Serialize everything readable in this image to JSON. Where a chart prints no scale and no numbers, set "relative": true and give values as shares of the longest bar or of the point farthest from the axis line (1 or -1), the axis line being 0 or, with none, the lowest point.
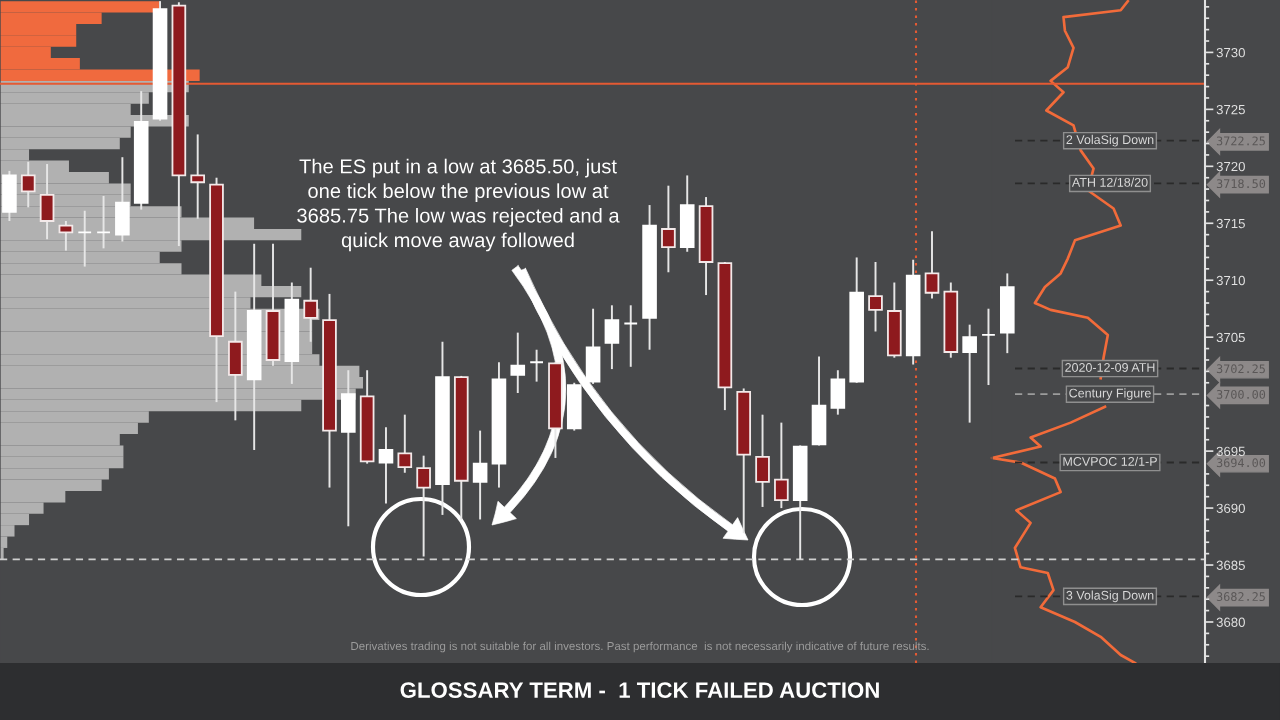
{
  "chart_data": [
    {
      "type": "candlestick",
      "title": "GLOSSARY TERM -  1 TICK FAILED AUCTION",
      "annotations": [
        "The ES put in a low at 3685.50, just\none tick below the previous low at\n3685.75 The low was rejected and a\nquick move away followed",
        "Derivatives trading is not suitable for all investors. Past performance  is not necessarily indicative of future results."
      ],
      "categories": [
        null,
        null,
        null,
        null,
        null,
        null,
        null,
        null,
        null,
        null,
        null,
        null,
        null,
        null,
        null,
        null,
        null,
        null,
        null,
        null,
        null,
        null,
        null,
        null,
        null,
        null,
        null,
        null,
        null,
        null,
        null,
        null,
        null,
        null,
        null,
        null,
        null,
        null,
        null,
        null,
        null,
        null,
        null,
        null,
        null,
        null,
        null,
        null,
        null,
        null,
        null,
        null,
        null,
        null,
        null,
        null,
        null,
        null,
        null,
        null,
        null,
        null,
        null,
        null
      ],
      "ohlc": [
        [
          3716.0,
          3719.6,
          3715.2,
          3719.2
        ],
        [
          3719.2,
          3720.4,
          3716.4,
          3717.8
        ],
        [
          3717.5,
          3720.2,
          3713.6,
          3715.2
        ],
        [
          3714.8,
          3715.2,
          3712.6,
          3714.2
        ],
        [
          3714.2,
          3716.1,
          3711.2,
          3714.2
        ],
        [
          3714.2,
          3717.4,
          3712.8,
          3714.2
        ],
        [
          3714.0,
          3720.8,
          3713.4,
          3716.8
        ],
        [
          3716.8,
          3726.6,
          3716.2,
          3723.9
        ],
        [
          3724.2,
          3734.5,
          3724.0,
          3733.8
        ],
        [
          3734.1,
          3734.4,
          3713.0,
          3719.2
        ],
        [
          3719.2,
          3722.8,
          3715.4,
          3718.6
        ],
        [
          3718.4,
          3719.0,
          3699.3,
          3705.1
        ],
        [
          3704.6,
          3709.0,
          3697.7,
          3701.7
        ],
        [
          3701.3,
          3713.2,
          3695.1,
          3707.3
        ],
        [
          3707.3,
          3713.2,
          3702.5,
          3703.0
        ],
        [
          3702.9,
          3709.8,
          3700.9,
          3708.3
        ],
        [
          3708.2,
          3711.1,
          3704.6,
          3706.7
        ],
        [
          3706.5,
          3708.8,
          3691.8,
          3696.8
        ],
        [
          3696.7,
          3702.1,
          3688.4,
          3700.0
        ],
        [
          3699.8,
          3702.1,
          3693.9,
          3694.1
        ],
        [
          3694.0,
          3697.1,
          3690.4,
          3695.1
        ],
        [
          3694.8,
          3698.2,
          3693.1,
          3693.6
        ],
        [
          3693.5,
          3694.6,
          3685.75,
          3691.8
        ],
        [
          3692.1,
          3704.6,
          3689.4,
          3701.5
        ],
        [
          3701.5,
          3701.6,
          3689.0,
          3692.4
        ],
        [
          3692.3,
          3696.8,
          3689.0,
          3693.9
        ],
        [
          3693.9,
          3702.8,
          3691.8,
          3701.3
        ],
        [
          3701.7,
          3705.4,
          3700.1,
          3702.5
        ],
        [
          3702.8,
          3703.9,
          3701.1,
          3702.8
        ],
        [
          3702.7,
          3702.8,
          3694.4,
          3697.0
        ],
        [
          3697.0,
          3701.0,
          3696.8,
          3700.8
        ],
        [
          3701.1,
          3707.5,
          3700.9,
          3704.1
        ],
        [
          3704.5,
          3707.8,
          3702.2,
          3706.5
        ],
        [
          3706.2,
          3707.8,
          3702.4,
          3706.2
        ],
        [
          3706.7,
          3716.6,
          3703.9,
          3714.8
        ],
        [
          3714.5,
          3718.3,
          3710.7,
          3712.9
        ],
        [
          3712.9,
          3719.2,
          3712.5,
          3716.6
        ],
        [
          3716.5,
          3717.3,
          3708.7,
          3711.6
        ],
        [
          3711.5,
          3711.6,
          3698.6,
          3700.6
        ],
        [
          3700.2,
          3700.5,
          3687.8,
          3694.7
        ],
        [
          3694.5,
          3698.2,
          3690.1,
          3692.3
        ],
        [
          3692.5,
          3697.5,
          3690.0,
          3690.7
        ],
        [
          3690.7,
          3695.5,
          3685.5,
          3695.4
        ],
        [
          3695.6,
          3703.3,
          3695.5,
          3699.0
        ],
        [
          3698.8,
          3702.1,
          3698.2,
          3701.3
        ],
        [
          3701.1,
          3712.0,
          3701.0,
          3708.9
        ],
        [
          3708.6,
          3711.6,
          3705.5,
          3707.4
        ],
        [
          3707.3,
          3709.8,
          3703.2,
          3703.4
        ],
        [
          3703.4,
          3711.8,
          3702.6,
          3710.4
        ],
        [
          3710.6,
          3714.3,
          3708.4,
          3708.9
        ],
        [
          3709.0,
          3709.8,
          3703.2,
          3703.7
        ],
        [
          3703.7,
          3706.1,
          3697.5,
          3705.0
        ],
        [
          3705.2,
          3707.5,
          3700.8,
          3705.2
        ],
        [
          3705.4,
          3710.6,
          3703.6,
          3709.4
        ],
        null,
        null,
        null,
        null,
        null,
        null,
        null,
        null,
        null,
        null
      ],
      "colors": [
        "#ffffff",
        "#8e1a1e",
        "#8e1a1e",
        "#8e1a1e",
        "#ffffff",
        "#ffffff",
        "#ffffff",
        "#ffffff",
        "#ffffff",
        "#8e1a1e",
        "#8e1a1e",
        "#8e1a1e",
        "#8e1a1e",
        "#ffffff",
        "#8e1a1e",
        "#ffffff",
        "#8e1a1e",
        "#8e1a1e",
        "#ffffff",
        "#8e1a1e",
        "#ffffff",
        "#8e1a1e",
        "#8e1a1e",
        "#ffffff",
        "#8e1a1e",
        "#ffffff",
        "#ffffff",
        "#ffffff",
        "#ffffff",
        "#8e1a1e",
        "#ffffff",
        "#ffffff",
        "#ffffff",
        "#ffffff",
        "#ffffff",
        "#8e1a1e",
        "#ffffff",
        "#8e1a1e",
        "#8e1a1e",
        "#8e1a1e",
        "#8e1a1e",
        "#8e1a1e",
        "#ffffff",
        "#ffffff",
        "#ffffff",
        "#ffffff",
        "#8e1a1e",
        "#8e1a1e",
        "#ffffff",
        "#8e1a1e",
        "#8e1a1e",
        "#ffffff",
        "#ffffff",
        "#ffffff",
        null,
        null,
        null,
        null,
        null,
        null,
        null,
        null,
        null,
        null
      ],
      "ylim": [
        3676.4,
        3734.6
      ],
      "yticks": [
        {
          "value": 3677,
          "label": null
        },
        {
          "value": 3678,
          "label": null
        },
        {
          "value": 3679,
          "label": null
        },
        3680,
        {
          "value": 3681,
          "label": null
        },
        {
          "value": 3682,
          "label": null
        },
        {
          "value": 3682.25,
          "label": "3682.25"
        },
        {
          "value": 3683,
          "label": null
        },
        {
          "value": 3684,
          "label": null
        },
        3685,
        {
          "value": 3686,
          "label": null
        },
        {
          "value": 3687,
          "label": null
        },
        {
          "value": 3688,
          "label": null
        },
        {
          "value": 3689,
          "label": null
        },
        3690,
        {
          "value": 3691,
          "label": null
        },
        {
          "value": 3692,
          "label": null
        },
        {
          "value": 3693,
          "label": null
        },
        {
          "value": 3694,
          "label": "3694.00"
        },
        3695,
        {
          "value": 3696,
          "label": null
        },
        {
          "value": 3697,
          "label": null
        },
        {
          "value": 3698,
          "label": null
        },
        {
          "value": 3699,
          "label": null
        },
        {
          "value": 3700,
          "label": "3700.00"
        },
        {
          "value": 3701,
          "label": null
        },
        {
          "value": 3702,
          "label": null
        },
        {
          "value": 3702.25,
          "label": "3702.25"
        },
        {
          "value": 3703,
          "label": null
        },
        {
          "value": 3704,
          "label": null
        },
        3705,
        {
          "value": 3706,
          "label": null
        },
        {
          "value": 3707,
          "label": null
        },
        {
          "value": 3708,
          "label": null
        },
        {
          "value": 3709,
          "label": null
        },
        3710,
        {
          "value": 3711,
          "label": null
        },
        {
          "value": 3712,
          "label": null
        },
        {
          "value": 3713,
          "label": null
        },
        {
          "value": 3714,
          "label": null
        },
        3715,
        {
          "value": 3716,
          "label": null
        },
        {
          "value": 3717,
          "label": null
        },
        {
          "value": 3718,
          "label": null
        },
        {
          "value": 3718.5,
          "label": "3718.50"
        },
        {
          "value": 3719,
          "label": null
        },
        3720,
        {
          "value": 3721,
          "label": null
        },
        {
          "value": 3722,
          "label": null
        },
        {
          "value": 3722.25,
          "label": "3722.25"
        },
        {
          "value": 3723,
          "label": null
        },
        {
          "value": 3724,
          "label": null
        },
        3725,
        {
          "value": 3726,
          "label": null
        },
        {
          "value": 3727,
          "label": null
        },
        {
          "value": 3728,
          "label": null
        },
        {
          "value": 3729,
          "label": null
        },
        3730,
        {
          "value": 3731,
          "label": null
        },
        {
          "value": 3732,
          "label": null
        },
        {
          "value": 3733,
          "label": null
        },
        {
          "value": 3734,
          "label": null
        }
      ],
      "ref_lines": [
        {
          "axis": "y",
          "value": 3727.25,
          "color": "#e55a33",
          "line_style": "solid"
        },
        {
          "axis": "y",
          "value": 3685.5,
          "color": "#cfcfcf",
          "line_style": "dashed"
        },
        {
          "axis": "y",
          "value": 3722.25,
          "label": "2 VolaSig Down",
          "color": "#2a2a2a",
          "line_style": "dashed"
        },
        {
          "axis": "y",
          "value": 3718.5,
          "label": "ATH 12/18/20",
          "color": "#2a2a2a",
          "line_style": "dashed"
        },
        {
          "axis": "y",
          "value": 3702.25,
          "label": "2020-12-09 ATH",
          "color": "#2a2a2a",
          "line_style": "dashed"
        },
        {
          "axis": "y",
          "value": 3700,
          "label": "Century Figure",
          "color": "#9c9c9c",
          "line_style": "dashed"
        },
        {
          "axis": "y",
          "value": 3694,
          "label": "MCVPOC 12/1-P",
          "color": "#2a2a2a",
          "line_style": "dashed"
        },
        {
          "axis": "y",
          "value": 3682.25,
          "label": "3 VolaSig Down",
          "color": "#2a2a2a",
          "line_style": "dashed"
        }
      ],
      "tick_labels": "y"
    },
    {
      "type": "bar",
      "orientation": "horizontal",
      "relative": true,
      "x": [
        3734,
        3733,
        3732,
        3731,
        3730,
        3729,
        3728,
        3727,
        3726,
        3725,
        3724,
        3723,
        3722,
        3721,
        3720,
        3719,
        3718,
        3717,
        3716,
        3715,
        3714,
        3713,
        3712,
        3711,
        3710,
        3709,
        3708,
        3707,
        3706,
        3705,
        3704,
        3703,
        3702,
        3701,
        3700,
        3699,
        3698,
        3697,
        3696,
        3695,
        3694,
        3693,
        3692,
        3691,
        3690,
        3689,
        3688,
        3687,
        3686
      ],
      "values": [
        0.44,
        0.28,
        0.21,
        0.21,
        0.14,
        0.22,
        0.55,
        0.52,
        0.41,
        0.36,
        0.52,
        0.36,
        0.33,
        0.08,
        0.19,
        0.3,
        0.36,
        0.36,
        0.5,
        0.7,
        0.83,
        0.5,
        0.44,
        0.5,
        0.72,
        0.83,
        0.69,
        0.88,
        0.86,
        0.86,
        0.86,
        0.88,
        0.99,
        1.0,
        0.98,
        0.83,
        0.41,
        0.38,
        0.33,
        0.34,
        0.34,
        0.3,
        0.28,
        0.18,
        0.12,
        0.08,
        0.04,
        0.02,
        0.01
      ],
      "colors": [
        "#f06a3e",
        "#f06a3e",
        "#f06a3e",
        "#f06a3e",
        "#f06a3e",
        "#f06a3e",
        "#f06a3e",
        "#b1b1b1",
        "#b1b1b1",
        "#b1b1b1",
        "#b1b1b1",
        "#b1b1b1",
        "#b1b1b1",
        "#b1b1b1",
        "#b1b1b1",
        "#b1b1b1",
        "#b1b1b1",
        "#b1b1b1",
        "#b1b1b1",
        "#b1b1b1",
        "#b1b1b1",
        "#b1b1b1",
        "#b1b1b1",
        "#b1b1b1",
        "#b1b1b1",
        "#b1b1b1",
        "#b1b1b1",
        "#b1b1b1",
        "#b1b1b1",
        "#b1b1b1",
        "#b1b1b1",
        "#b1b1b1",
        "#b1b1b1",
        "#b1b1b1",
        "#b1b1b1",
        "#b1b1b1",
        "#b1b1b1",
        "#b1b1b1",
        "#b1b1b1",
        "#b1b1b1",
        "#b1b1b1",
        "#b1b1b1",
        "#b1b1b1",
        "#b1b1b1",
        "#b1b1b1",
        "#b1b1b1",
        "#b1b1b1",
        "#b1b1b1",
        "#b1b1b1"
      ],
      "ylim": [
        3676.4,
        3734.6
      ],
      "tick_labels": false
    },
    {
      "type": "line",
      "orientation": "horizontal",
      "relative": true,
      "color": "#f26b3a",
      "x": [
        3734.5,
        3733.7,
        3733.1,
        3731.9,
        3730.4,
        3728.7,
        3727.5,
        3726.5,
        3724.9,
        3723.6,
        3721.4,
        3719.8,
        3717.9,
        3716.3,
        3714.8,
        3713.5,
        3711.9,
        3710.6,
        3709.4,
        3708.0,
        3707.4,
        3706.7,
        3705.2,
        3703.2,
        3701.4,
        3699.9,
        3698.9,
        3697.5,
        3696.2,
        3695.4,
        3694.4,
        3694.0,
        3692.6,
        3691.4,
        3689.8,
        3688.7,
        3686.5,
        3684.8,
        3684.3,
        3682.8,
        3681.3,
        3680.0,
        3678.7,
        3677.1,
        3676.4
      ],
      "values": [
        0.95,
        0.9,
        0.5,
        0.51,
        0.57,
        0.53,
        0.41,
        0.5,
        0.38,
        0.57,
        0.62,
        0.71,
        0.67,
        0.85,
        0.9,
        0.58,
        0.53,
        0.48,
        0.37,
        0.3,
        0.41,
        0.67,
        0.81,
        0.78,
        0.76,
        null,
        0.79,
        0.55,
        0.27,
        0.34,
        0.0,
        0.2,
        0.44,
        0.48,
        0.17,
        0.27,
        0.16,
        0.2,
        0.39,
        0.43,
        0.34,
        0.58,
        0.76,
        0.9,
        1.0
      ],
      "ylim": [
        3676.4,
        3734.6
      ],
      "tick_labels": false
    }
  ]
}
